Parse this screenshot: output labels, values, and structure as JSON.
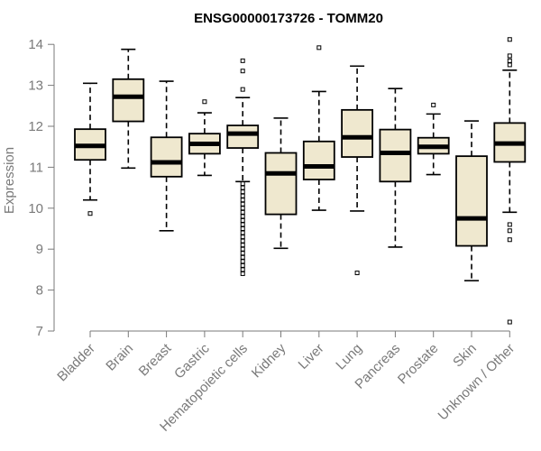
{
  "chart_data": {
    "type": "boxplot",
    "title": "ENSG00000173726 - TOMM20",
    "ylabel": "Expression",
    "xlabel": "",
    "ylim": [
      7,
      14.2
    ],
    "yticks": [
      7,
      8,
      9,
      10,
      11,
      12,
      13,
      14
    ],
    "grid": false,
    "legend": "none",
    "colors": {
      "box_fill": "#efe8cf",
      "box_stroke": "#000000",
      "median": "#000000",
      "axis": "#7a7a7a"
    },
    "categories": [
      "Bladder",
      "Brain",
      "Breast",
      "Gastric",
      "Hematopoietic cells",
      "Kidney",
      "Liver",
      "Lung",
      "Pancreas",
      "Prostate",
      "Skin",
      "Unknown / Other"
    ],
    "boxes": [
      {
        "q1": 11.18,
        "median": 11.52,
        "q3": 11.93,
        "whisker_low": 10.2,
        "whisker_high": 13.05,
        "outliers": [
          9.87
        ]
      },
      {
        "q1": 12.12,
        "median": 12.72,
        "q3": 13.15,
        "whisker_low": 10.98,
        "whisker_high": 13.88,
        "outliers": []
      },
      {
        "q1": 10.77,
        "median": 11.12,
        "q3": 11.73,
        "whisker_low": 9.45,
        "whisker_high": 13.1,
        "outliers": []
      },
      {
        "q1": 11.33,
        "median": 11.57,
        "q3": 11.82,
        "whisker_low": 10.8,
        "whisker_high": 12.33,
        "outliers": [
          12.6
        ]
      },
      {
        "q1": 11.47,
        "median": 11.82,
        "q3": 12.02,
        "whisker_low": 10.65,
        "whisker_high": 12.7,
        "outliers": [
          13.6,
          13.35,
          12.9,
          10.6,
          10.5,
          10.4,
          10.3,
          10.2,
          10.1,
          10.0,
          9.9,
          9.8,
          9.7,
          9.6,
          9.5,
          9.4,
          9.3,
          9.2,
          9.1,
          9.0,
          8.9,
          8.8,
          8.7,
          8.6,
          8.5,
          8.4
        ]
      },
      {
        "q1": 9.85,
        "median": 10.85,
        "q3": 11.35,
        "whisker_low": 9.02,
        "whisker_high": 12.2,
        "outliers": []
      },
      {
        "q1": 10.7,
        "median": 11.02,
        "q3": 11.63,
        "whisker_low": 9.95,
        "whisker_high": 12.85,
        "outliers": [
          13.92
        ]
      },
      {
        "q1": 11.25,
        "median": 11.73,
        "q3": 12.4,
        "whisker_low": 9.93,
        "whisker_high": 13.47,
        "outliers": [
          8.42
        ]
      },
      {
        "q1": 10.65,
        "median": 11.35,
        "q3": 11.92,
        "whisker_low": 9.05,
        "whisker_high": 12.92,
        "outliers": []
      },
      {
        "q1": 11.33,
        "median": 11.5,
        "q3": 11.72,
        "whisker_low": 10.82,
        "whisker_high": 12.3,
        "outliers": [
          12.52
        ]
      },
      {
        "q1": 9.08,
        "median": 9.75,
        "q3": 11.27,
        "whisker_low": 8.23,
        "whisker_high": 12.13,
        "outliers": []
      },
      {
        "q1": 11.13,
        "median": 11.58,
        "q3": 12.08,
        "whisker_low": 9.9,
        "whisker_high": 13.37,
        "outliers": [
          14.12,
          13.72,
          13.6,
          13.5,
          9.6,
          9.45,
          9.23,
          7.22
        ]
      }
    ]
  }
}
